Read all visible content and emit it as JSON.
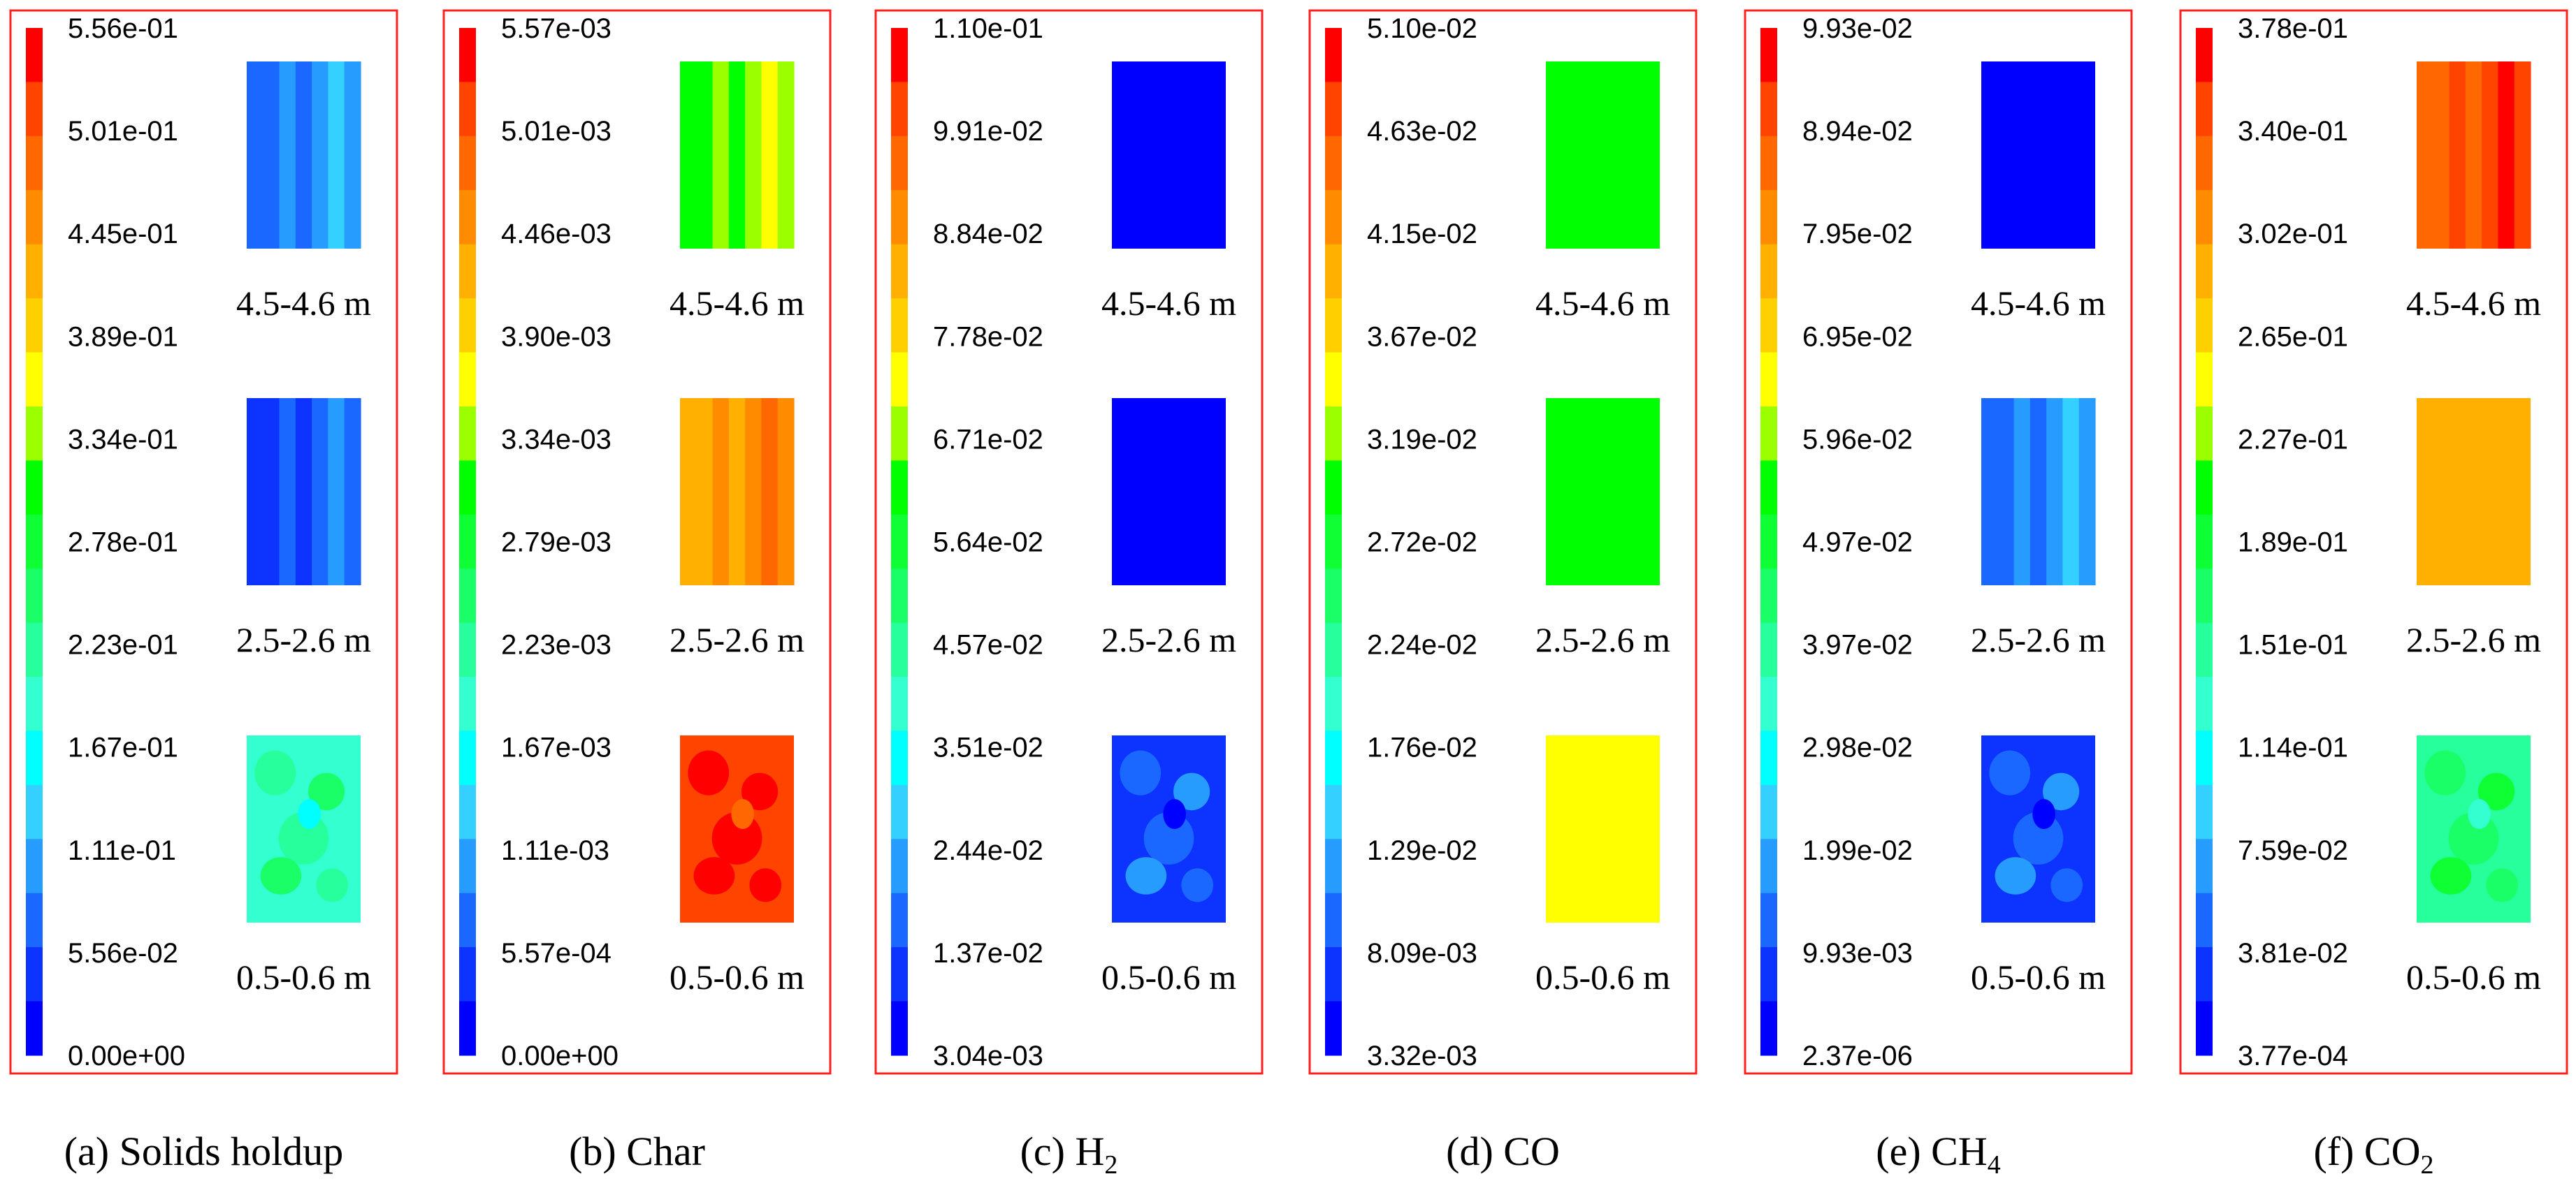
{
  "palette": [
    "#0000ff",
    "#0d34ff",
    "#1a68ff",
    "#279cff",
    "#34d0ff",
    "#00ffff",
    "#34ffd0",
    "#27ff9c",
    "#1aff68",
    "#0dff34",
    "#00ff00",
    "#9cff00",
    "#ffff00",
    "#ffd000",
    "#ffb000",
    "#ff8c00",
    "#ff6800",
    "#ff4400",
    "#ff0000"
  ],
  "chart_data": [
    {
      "type": "heatmap",
      "title_prefix": "(a) Solids holdup",
      "variable": "Solids holdup",
      "colorbar_ticks": [
        "5.56e-01",
        "5.01e-01",
        "4.45e-01",
        "3.89e-01",
        "3.34e-01",
        "2.78e-01",
        "2.23e-01",
        "1.67e-01",
        "1.11e-01",
        "5.56e-02",
        "0.00e+00"
      ],
      "heights": [
        {
          "label": "4.5-4.6 m",
          "dominant_level": 2,
          "pattern": "stripes"
        },
        {
          "label": "2.5-2.6 m",
          "dominant_level": 1,
          "pattern": "stripes"
        },
        {
          "label": "0.5-0.6 m",
          "dominant_level": 6,
          "pattern": "mixed"
        }
      ]
    },
    {
      "type": "heatmap",
      "title_prefix": "(b) Char",
      "variable": "Char",
      "colorbar_ticks": [
        "5.57e-03",
        "5.01e-03",
        "4.46e-03",
        "3.90e-03",
        "3.34e-03",
        "2.79e-03",
        "2.23e-03",
        "1.67e-03",
        "1.11e-03",
        "5.57e-04",
        "0.00e+00"
      ],
      "heights": [
        {
          "label": "4.5-4.6 m",
          "dominant_level": 10,
          "pattern": "stripes"
        },
        {
          "label": "2.5-2.6 m",
          "dominant_level": 14,
          "pattern": "stripes"
        },
        {
          "label": "0.5-0.6 m",
          "dominant_level": 17,
          "pattern": "mixed"
        }
      ]
    },
    {
      "type": "heatmap",
      "title_prefix": "(c) H",
      "subscript": "2",
      "variable": "H2",
      "colorbar_ticks": [
        "1.10e-01",
        "9.91e-02",
        "8.84e-02",
        "7.78e-02",
        "6.71e-02",
        "5.64e-02",
        "4.57e-02",
        "3.51e-02",
        "2.44e-02",
        "1.37e-02",
        "3.04e-03"
      ],
      "heights": [
        {
          "label": "4.5-4.6 m",
          "dominant_level": 0,
          "pattern": "uniform"
        },
        {
          "label": "2.5-2.6 m",
          "dominant_level": 0,
          "pattern": "uniform"
        },
        {
          "label": "0.5-0.6 m",
          "dominant_level": 1,
          "pattern": "mixed"
        }
      ]
    },
    {
      "type": "heatmap",
      "title_prefix": "(d) CO",
      "variable": "CO",
      "colorbar_ticks": [
        "5.10e-02",
        "4.63e-02",
        "4.15e-02",
        "3.67e-02",
        "3.19e-02",
        "2.72e-02",
        "2.24e-02",
        "1.76e-02",
        "1.29e-02",
        "8.09e-03",
        "3.32e-03"
      ],
      "heights": [
        {
          "label": "4.5-4.6 m",
          "dominant_level": 10,
          "pattern": "uniform"
        },
        {
          "label": "2.5-2.6 m",
          "dominant_level": 10,
          "pattern": "uniform"
        },
        {
          "label": "0.5-0.6 m",
          "dominant_level": 12,
          "pattern": "uniform"
        }
      ]
    },
    {
      "type": "heatmap",
      "title_prefix": "(e) CH",
      "subscript": "4",
      "variable": "CH4",
      "colorbar_ticks": [
        "9.93e-02",
        "8.94e-02",
        "7.95e-02",
        "6.95e-02",
        "5.96e-02",
        "4.97e-02",
        "3.97e-02",
        "2.98e-02",
        "1.99e-02",
        "9.93e-03",
        "2.37e-06"
      ],
      "heights": [
        {
          "label": "4.5-4.6 m",
          "dominant_level": 0,
          "pattern": "uniform"
        },
        {
          "label": "2.5-2.6 m",
          "dominant_level": 2,
          "pattern": "stripes"
        },
        {
          "label": "0.5-0.6 m",
          "dominant_level": 1,
          "pattern": "mixed"
        }
      ]
    },
    {
      "type": "heatmap",
      "title_prefix": "(f) CO",
      "subscript": "2",
      "variable": "CO2",
      "colorbar_ticks": [
        "3.78e-01",
        "3.40e-01",
        "3.02e-01",
        "2.65e-01",
        "2.27e-01",
        "1.89e-01",
        "1.51e-01",
        "1.14e-01",
        "7.59e-02",
        "3.81e-02",
        "3.77e-04"
      ],
      "heights": [
        {
          "label": "4.5-4.6 m",
          "dominant_level": 16,
          "pattern": "stripes"
        },
        {
          "label": "2.5-2.6 m",
          "dominant_level": 14,
          "pattern": "uniform"
        },
        {
          "label": "0.5-0.6 m",
          "dominant_level": 7,
          "pattern": "mixed"
        }
      ]
    }
  ]
}
